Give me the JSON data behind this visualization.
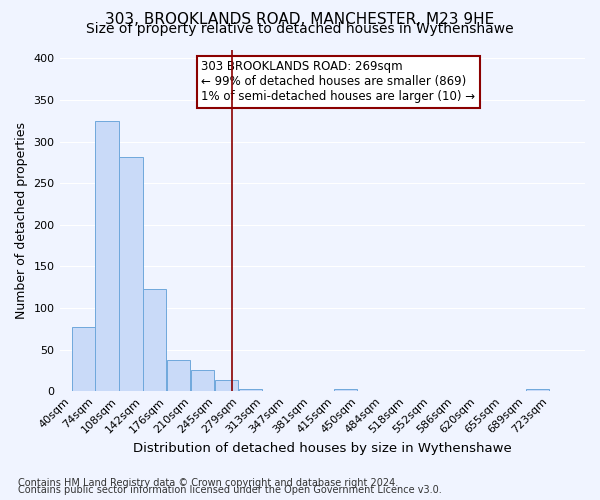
{
  "title": "303, BROOKLANDS ROAD, MANCHESTER, M23 9HE",
  "subtitle": "Size of property relative to detached houses in Wythenshawe",
  "xlabel": "Distribution of detached houses by size in Wythenshawe",
  "ylabel": "Number of detached properties",
  "bin_labels": [
    "40sqm",
    "74sqm",
    "108sqm",
    "142sqm",
    "176sqm",
    "210sqm",
    "245sqm",
    "279sqm",
    "313sqm",
    "347sqm",
    "381sqm",
    "415sqm",
    "450sqm",
    "484sqm",
    "518sqm",
    "552sqm",
    "586sqm",
    "620sqm",
    "655sqm",
    "689sqm",
    "723sqm"
  ],
  "bin_edges": [
    40,
    74,
    108,
    142,
    176,
    210,
    245,
    279,
    313,
    347,
    381,
    415,
    450,
    484,
    518,
    552,
    586,
    620,
    655,
    689,
    723
  ],
  "bar_heights": [
    77,
    325,
    281,
    123,
    37,
    25,
    14,
    3,
    0,
    0,
    0,
    3,
    0,
    0,
    0,
    0,
    0,
    0,
    0,
    3
  ],
  "bar_color": "#c9daf8",
  "bar_edge_color": "#6fa8dc",
  "property_line_x": 269,
  "ylim": [
    0,
    410
  ],
  "yticks": [
    0,
    50,
    100,
    150,
    200,
    250,
    300,
    350,
    400
  ],
  "annotation_title": "303 BROOKLANDS ROAD: 269sqm",
  "annotation_line1": "← 99% of detached houses are smaller (869)",
  "annotation_line2": "1% of semi-detached houses are larger (10) →",
  "footer1": "Contains HM Land Registry data © Crown copyright and database right 2024.",
  "footer2": "Contains public sector information licensed under the Open Government Licence v3.0.",
  "background_color": "#f0f4ff",
  "grid_color": "#ffffff",
  "title_fontsize": 11,
  "subtitle_fontsize": 10,
  "axis_label_fontsize": 9,
  "tick_fontsize": 8,
  "annotation_fontsize": 8.5,
  "footer_fontsize": 7
}
